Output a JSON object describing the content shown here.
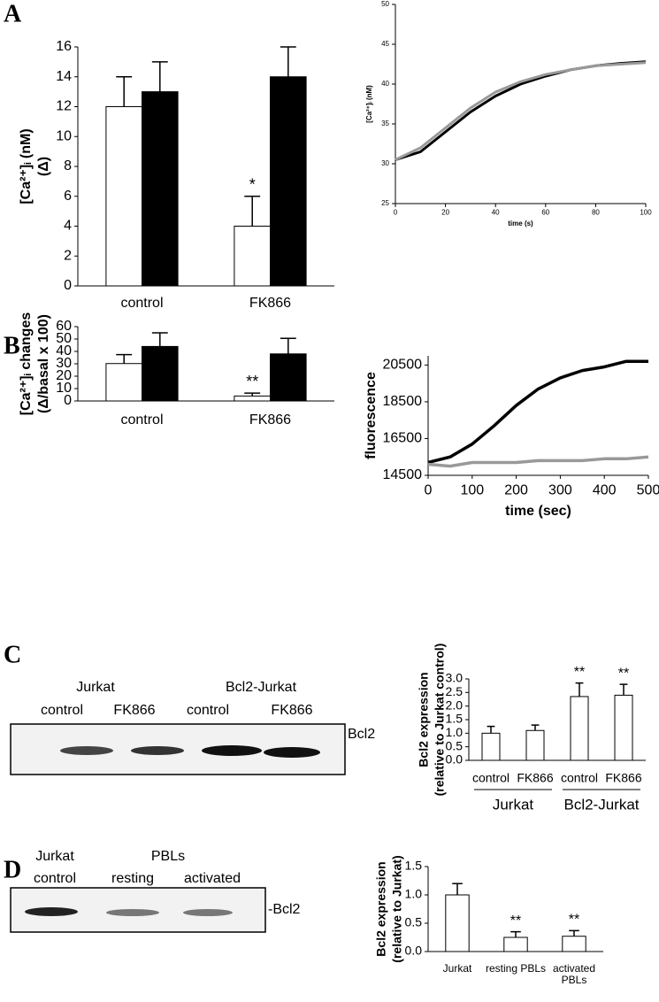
{
  "panel_labels": [
    "A",
    "B",
    "C",
    "D"
  ],
  "chart_data": [
    {
      "type": "bar",
      "ylabel": [
        "[Ca²⁺]ᵢ (nM)",
        "(Δ)"
      ],
      "categories": [
        "control",
        "FK866"
      ],
      "series": [
        {
          "color": "#ffffff",
          "values": [
            12,
            4
          ],
          "errors": [
            2,
            2
          ],
          "markers": [
            null,
            "*"
          ]
        },
        {
          "color": "#000000",
          "values": [
            13,
            14
          ],
          "errors": [
            2,
            2
          ]
        }
      ],
      "ylim": [
        0,
        16
      ],
      "yticks": [
        0,
        2,
        4,
        6,
        8,
        10,
        12,
        14,
        16
      ]
    },
    {
      "type": "line",
      "xlabel": "time (s)",
      "ylabel": [
        "[Ca²⁺]ᵢ (nM)"
      ],
      "x": [
        0,
        10,
        20,
        30,
        40,
        50,
        60,
        70,
        80,
        90,
        100
      ],
      "series": [
        {
          "color": "#000000",
          "values": [
            30.5,
            31.5,
            34,
            36.5,
            38.5,
            40,
            41,
            41.8,
            42.3,
            42.6,
            42.8
          ]
        },
        {
          "color": "#999999",
          "values": [
            30.5,
            32,
            34.5,
            37,
            39,
            40.3,
            41.2,
            41.8,
            42.3,
            42.5,
            42.7
          ]
        }
      ],
      "xlim": [
        0,
        100
      ],
      "xticks": [
        0,
        20,
        40,
        60,
        80,
        100
      ],
      "ylim": [
        25,
        50
      ],
      "yticks": [
        25,
        30,
        35,
        40,
        45,
        50
      ]
    },
    {
      "type": "bar",
      "ylabel": [
        "[Ca²⁺]ᵢ changes",
        "(Δ/basal x 100)"
      ],
      "categories": [
        "control",
        "FK866"
      ],
      "series": [
        {
          "color": "#ffffff",
          "values": [
            30.2,
            4
          ],
          "errors": [
            7.2,
            2.3
          ],
          "markers": [
            null,
            "**"
          ]
        },
        {
          "color": "#000000",
          "values": [
            44,
            38
          ],
          "errors": [
            11,
            12.5
          ]
        }
      ],
      "ylim": [
        0,
        60
      ],
      "yticks": [
        0,
        10,
        20,
        30,
        40,
        50,
        60
      ]
    },
    {
      "type": "line",
      "xlabel": "time (sec)",
      "ylabel": [
        "fluorescence"
      ],
      "x": [
        0,
        50,
        100,
        150,
        200,
        250,
        300,
        350,
        400,
        450,
        500
      ],
      "series": [
        {
          "color": "#000000",
          "values": [
            15200,
            15500,
            16200,
            17200,
            18300,
            19200,
            19800,
            20200,
            20400,
            20700,
            20700
          ]
        },
        {
          "color": "#999999",
          "values": [
            15100,
            15000,
            15200,
            15200,
            15200,
            15300,
            15300,
            15300,
            15400,
            15400,
            15500
          ]
        }
      ],
      "xlim": [
        0,
        500
      ],
      "xticks": [
        0,
        100,
        200,
        300,
        400,
        500
      ],
      "ylim": [
        14500,
        21000
      ],
      "yticks": [
        14500,
        16500,
        18500,
        20500
      ]
    },
    {
      "type": "bar",
      "ylabel": [
        "Bcl2 expression",
        "(relative to Jurkat control)"
      ],
      "categories": [
        "control",
        "FK866",
        "control",
        "FK866"
      ],
      "groups": [
        "Jurkat",
        "Bcl2-Jurkat"
      ],
      "series": [
        {
          "color": "#ffffff",
          "values": [
            1,
            1.1,
            2.35,
            2.4
          ],
          "errors": [
            0.25,
            0.2,
            0.5,
            0.4
          ],
          "markers": [
            null,
            null,
            "**",
            "**"
          ]
        }
      ],
      "ylim": [
        0,
        3
      ],
      "yticks": [
        {
          "value": 0,
          "label": "0.0"
        },
        {
          "value": 0.5,
          "label": "0.5"
        },
        {
          "value": 1,
          "label": "1.0"
        },
        {
          "value": 1.5,
          "label": "1.5"
        },
        {
          "value": 2,
          "label": "2.0"
        },
        {
          "value": 2.5,
          "label": "2.5"
        },
        {
          "value": 3,
          "label": "3.0"
        }
      ]
    },
    {
      "type": "bar",
      "ylabel": [
        "Bcl2 expression",
        "(relative to Jurkat)"
      ],
      "categories": [
        "Jurkat",
        "resting PBLs",
        "activated PBLs"
      ],
      "series": [
        {
          "color": "#ffffff",
          "values": [
            1,
            0.25,
            0.27
          ],
          "errors": [
            0.2,
            0.1,
            0.1
          ],
          "markers": [
            null,
            "**",
            "**"
          ]
        }
      ],
      "ylim": [
        0,
        1.5
      ],
      "yticks": [
        {
          "value": 0,
          "label": "0.0"
        },
        {
          "value": 0.5,
          "label": "0.5"
        },
        {
          "value": 1,
          "label": "1.0"
        },
        {
          "value": 1.5,
          "label": "1.5"
        }
      ]
    }
  ],
  "blots": [
    {
      "groups": [
        "Jurkat",
        "Bcl2-Jurkat"
      ],
      "lanes": [
        "control",
        "FK866",
        "control",
        "FK866"
      ],
      "band": "Bcl2"
    },
    {
      "groups": [
        "Jurkat",
        "PBLs"
      ],
      "lanes": [
        "control",
        "resting",
        "activated"
      ],
      "band": "-Bcl2"
    }
  ]
}
